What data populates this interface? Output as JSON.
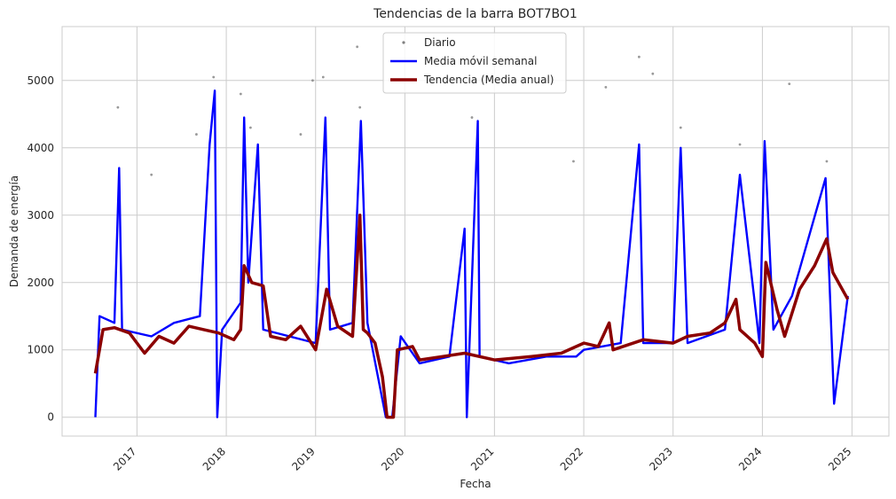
{
  "chart_data": {
    "type": "line",
    "title": "Tendencias de la barra BOT7BO1",
    "xlabel": "Fecha",
    "ylabel": "Demanda de energía",
    "xlim": [
      "2016-03-01",
      "2025-06-01"
    ],
    "ylim": [
      -280,
      5800
    ],
    "x_ticks": [
      "2017",
      "2018",
      "2019",
      "2020",
      "2021",
      "2022",
      "2023",
      "2024",
      "2025"
    ],
    "y_ticks": [
      0,
      1000,
      2000,
      3000,
      4000,
      5000
    ],
    "grid": true,
    "legend_position": "top-center",
    "colors": {
      "daily": "#808080",
      "weekly": "#0000ff",
      "trend": "#8b0000"
    },
    "series": [
      {
        "name": "Diario",
        "style": "scatter",
        "description_points": [
          [
            "2016-08-01",
            1300
          ],
          [
            "2016-10-15",
            4600
          ],
          [
            "2017-03-01",
            3600
          ],
          [
            "2017-09-01",
            4200
          ],
          [
            "2017-11-10",
            5050
          ],
          [
            "2018-03-01",
            4800
          ],
          [
            "2018-04-10",
            4300
          ],
          [
            "2018-11-01",
            4200
          ],
          [
            "2018-12-20",
            5000
          ],
          [
            "2019-02-01",
            5050
          ],
          [
            "2019-06-20",
            5500
          ],
          [
            "2019-07-01",
            4600
          ],
          [
            "2020-10-01",
            4450
          ],
          [
            "2021-11-20",
            3800
          ],
          [
            "2022-04-01",
            4900
          ],
          [
            "2022-08-15",
            5350
          ],
          [
            "2022-10-10",
            5100
          ],
          [
            "2023-02-01",
            4300
          ],
          [
            "2023-10-01",
            4050
          ],
          [
            "2024-04-20",
            4950
          ],
          [
            "2024-09-20",
            3800
          ]
        ]
      },
      {
        "name": "Media móvil semanal",
        "style": "line",
        "points": [
          [
            "2016-07-15",
            0
          ],
          [
            "2016-08-01",
            1500
          ],
          [
            "2016-10-01",
            1400
          ],
          [
            "2016-10-20",
            3700
          ],
          [
            "2016-11-01",
            1300
          ],
          [
            "2017-03-01",
            1200
          ],
          [
            "2017-06-01",
            1400
          ],
          [
            "2017-09-15",
            1500
          ],
          [
            "2017-10-25",
            4050
          ],
          [
            "2017-11-15",
            4850
          ],
          [
            "2017-11-25",
            0
          ],
          [
            "2017-12-15",
            1300
          ],
          [
            "2018-03-01",
            1700
          ],
          [
            "2018-03-15",
            4450
          ],
          [
            "2018-04-01",
            2000
          ],
          [
            "2018-05-10",
            4050
          ],
          [
            "2018-06-01",
            1300
          ],
          [
            "2019-01-01",
            1100
          ],
          [
            "2019-02-10",
            4450
          ],
          [
            "2019-03-01",
            1300
          ],
          [
            "2019-06-01",
            1400
          ],
          [
            "2019-07-05",
            4400
          ],
          [
            "2019-08-01",
            1400
          ],
          [
            "2019-10-15",
            0
          ],
          [
            "2019-11-10",
            0
          ],
          [
            "2019-12-15",
            1200
          ],
          [
            "2020-03-01",
            800
          ],
          [
            "2020-07-01",
            900
          ],
          [
            "2020-09-01",
            2800
          ],
          [
            "2020-09-10",
            0
          ],
          [
            "2020-10-25",
            4400
          ],
          [
            "2020-11-01",
            900
          ],
          [
            "2021-03-01",
            800
          ],
          [
            "2021-08-01",
            900
          ],
          [
            "2021-12-01",
            900
          ],
          [
            "2022-01-01",
            1000
          ],
          [
            "2022-06-01",
            1100
          ],
          [
            "2022-08-15",
            4050
          ],
          [
            "2022-09-01",
            1100
          ],
          [
            "2023-01-01",
            1100
          ],
          [
            "2023-02-01",
            4000
          ],
          [
            "2023-03-01",
            1100
          ],
          [
            "2023-08-01",
            1300
          ],
          [
            "2023-10-01",
            3600
          ],
          [
            "2023-12-20",
            1100
          ],
          [
            "2024-01-10",
            4100
          ],
          [
            "2024-02-15",
            1300
          ],
          [
            "2024-05-01",
            1800
          ],
          [
            "2024-09-15",
            3550
          ],
          [
            "2024-10-20",
            200
          ],
          [
            "2024-12-15",
            1800
          ]
        ]
      },
      {
        "name": "Tendencia (Media anual)",
        "style": "line",
        "points": [
          [
            "2016-07-15",
            650
          ],
          [
            "2016-08-15",
            1300
          ],
          [
            "2016-10-01",
            1330
          ],
          [
            "2016-12-01",
            1250
          ],
          [
            "2017-02-01",
            950
          ],
          [
            "2017-04-01",
            1200
          ],
          [
            "2017-06-01",
            1100
          ],
          [
            "2017-08-01",
            1350
          ],
          [
            "2017-10-01",
            1300
          ],
          [
            "2017-12-01",
            1250
          ],
          [
            "2018-02-01",
            1150
          ],
          [
            "2018-03-01",
            1300
          ],
          [
            "2018-03-15",
            2250
          ],
          [
            "2018-04-15",
            2000
          ],
          [
            "2018-06-01",
            1950
          ],
          [
            "2018-07-01",
            1200
          ],
          [
            "2018-09-01",
            1150
          ],
          [
            "2018-11-01",
            1350
          ],
          [
            "2019-01-01",
            1000
          ],
          [
            "2019-02-15",
            1900
          ],
          [
            "2019-04-01",
            1350
          ],
          [
            "2019-06-01",
            1200
          ],
          [
            "2019-07-01",
            3000
          ],
          [
            "2019-07-15",
            1300
          ],
          [
            "2019-08-01",
            1250
          ],
          [
            "2019-09-01",
            1100
          ],
          [
            "2019-10-01",
            600
          ],
          [
            "2019-10-20",
            0
          ],
          [
            "2019-11-15",
            0
          ],
          [
            "2019-12-01",
            1000
          ],
          [
            "2020-02-01",
            1050
          ],
          [
            "2020-03-01",
            850
          ],
          [
            "2020-06-01",
            900
          ],
          [
            "2020-09-01",
            950
          ],
          [
            "2021-01-01",
            850
          ],
          [
            "2021-06-01",
            900
          ],
          [
            "2021-10-01",
            950
          ],
          [
            "2022-01-01",
            1100
          ],
          [
            "2022-03-01",
            1050
          ],
          [
            "2022-04-15",
            1400
          ],
          [
            "2022-05-01",
            1000
          ],
          [
            "2022-09-01",
            1150
          ],
          [
            "2023-01-01",
            1100
          ],
          [
            "2023-03-01",
            1200
          ],
          [
            "2023-06-01",
            1250
          ],
          [
            "2023-08-01",
            1400
          ],
          [
            "2023-09-15",
            1750
          ],
          [
            "2023-10-01",
            1300
          ],
          [
            "2023-12-01",
            1100
          ],
          [
            "2024-01-01",
            900
          ],
          [
            "2024-01-15",
            2300
          ],
          [
            "2024-03-01",
            1600
          ],
          [
            "2024-04-01",
            1200
          ],
          [
            "2024-06-01",
            1900
          ],
          [
            "2024-08-01",
            2250
          ],
          [
            "2024-09-20",
            2650
          ],
          [
            "2024-10-15",
            2150
          ],
          [
            "2024-12-15",
            1750
          ]
        ]
      }
    ]
  }
}
